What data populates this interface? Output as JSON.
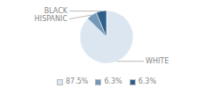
{
  "chart_data": {
    "type": "pie",
    "categories": [
      "WHITE",
      "HISPANIC",
      "BLACK"
    ],
    "values": [
      87.5,
      6.3,
      6.3
    ],
    "value_labels": [
      "87.5%",
      "6.3%",
      "6.3%"
    ],
    "colors": [
      "#dce6f1",
      "#7498b8",
      "#2e5f8a"
    ],
    "legend": "bottom"
  }
}
